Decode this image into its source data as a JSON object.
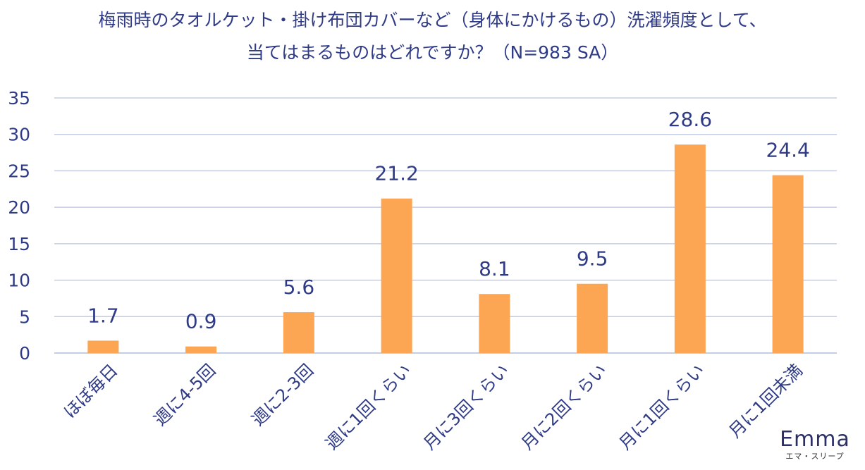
{
  "chart_data": {
    "type": "bar",
    "title_lines": [
      "梅雨時のタオルケット・掛け布団カバーなど（身体にかけるもの）洗濯頻度として、",
      "当てはまるものはどれですか？（N=983 SA）"
    ],
    "categories": [
      "ほぼ毎日",
      "週に4-5回",
      "週に2-3回",
      "週に1回くらい",
      "月に3回くらい",
      "月に2回くらい",
      "月に1回くらい",
      "月に1回未満"
    ],
    "values": [
      1.7,
      0.9,
      5.6,
      21.2,
      8.1,
      9.5,
      28.6,
      24.4
    ],
    "value_labels": [
      "1.7",
      "0.9",
      "5.6",
      "21.2",
      "8.1",
      "9.5",
      "28.6",
      "24.4"
    ],
    "y_ticks": [
      "0",
      "5",
      "10",
      "15",
      "20",
      "25",
      "30",
      "35"
    ],
    "ylim": [
      0,
      35
    ],
    "grid": true,
    "bar_color": "#fca552",
    "grid_color": "#c5cde3",
    "text_color": "#2f3b86"
  },
  "logo": {
    "word": "Emma",
    "sub": "エマ・スリープ"
  }
}
